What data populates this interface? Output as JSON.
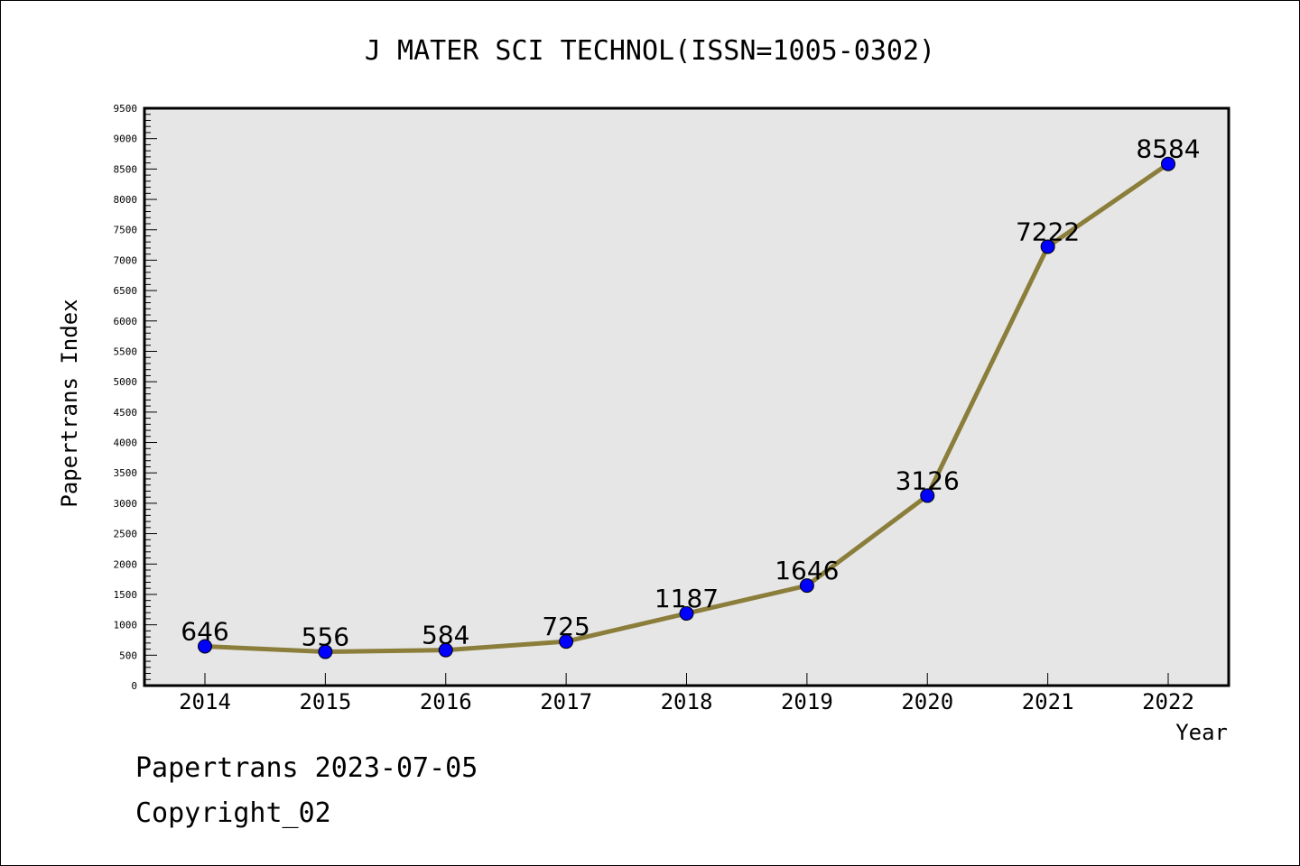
{
  "chart_data": {
    "type": "line",
    "title": "J MATER SCI TECHNOL(ISSN=1005-0302)",
    "xlabel": "Year",
    "ylabel": "Papertrans Index",
    "categories": [
      "2014",
      "2015",
      "2016",
      "2017",
      "2018",
      "2019",
      "2020",
      "2021",
      "2022"
    ],
    "series": [
      {
        "values": [
          646,
          556,
          584,
          725,
          1187,
          1646,
          3126,
          7222,
          8584
        ]
      }
    ],
    "ylim": [
      0,
      9500
    ],
    "yticks": [
      0,
      500,
      1000,
      1500,
      2000,
      2500,
      3000,
      3500,
      4000,
      4500,
      5000,
      5500,
      6000,
      6500,
      7000,
      7500,
      8000,
      8500,
      9000,
      9500
    ],
    "grid": false,
    "colors": {
      "line": "#8b7d3a",
      "marker": "#0000ff",
      "plot_bg": "#e6e6e6"
    }
  },
  "footer": {
    "source": "Papertrans 2023-07-05",
    "copyright": "Copyright_02"
  }
}
